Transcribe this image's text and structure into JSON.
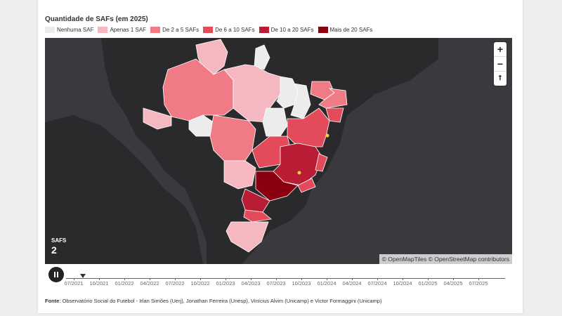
{
  "title": "Quantidade de SAFs (em 2025)",
  "legend": [
    {
      "label": "Nenhuma SAF",
      "color": "#ececec"
    },
    {
      "label": "Apenas 1 SAF",
      "color": "#f5b8c0"
    },
    {
      "label": "De 2 a 5 SAFs",
      "color": "#f07a85"
    },
    {
      "label": "De 6 a 10 SAFs",
      "color": "#e34b5a"
    },
    {
      "label": "De 10 a 20 SAFs",
      "color": "#b81d35"
    },
    {
      "label": "Mais de 20 SAFs",
      "color": "#8a0011"
    }
  ],
  "map": {
    "safs_label": "SAFS",
    "safs_value": "2",
    "attribution": "© OpenMapTiles © OpenStreetMap contributors",
    "zoom_in": "+",
    "zoom_out": "−",
    "reset": "⭡"
  },
  "timeline": {
    "labels": [
      "07/2021",
      "10/2021",
      "01/2022",
      "04/2022",
      "07/2022",
      "10/2022",
      "01/2023",
      "04/2023",
      "07/2023",
      "10/2023",
      "01/2024",
      "04/2024",
      "07/2024",
      "10/2024",
      "01/2025",
      "04/2025",
      "07/2025"
    ],
    "current": "07/2021"
  },
  "source": {
    "label": "Fonte",
    "text": ": Observatório Social do Futebol - Irlan Simões (Uerj), Jonathan Ferreira (Unesp), Vinícius Alvim (Unicamp) e Victor Formaggini (Unicamp)"
  }
}
